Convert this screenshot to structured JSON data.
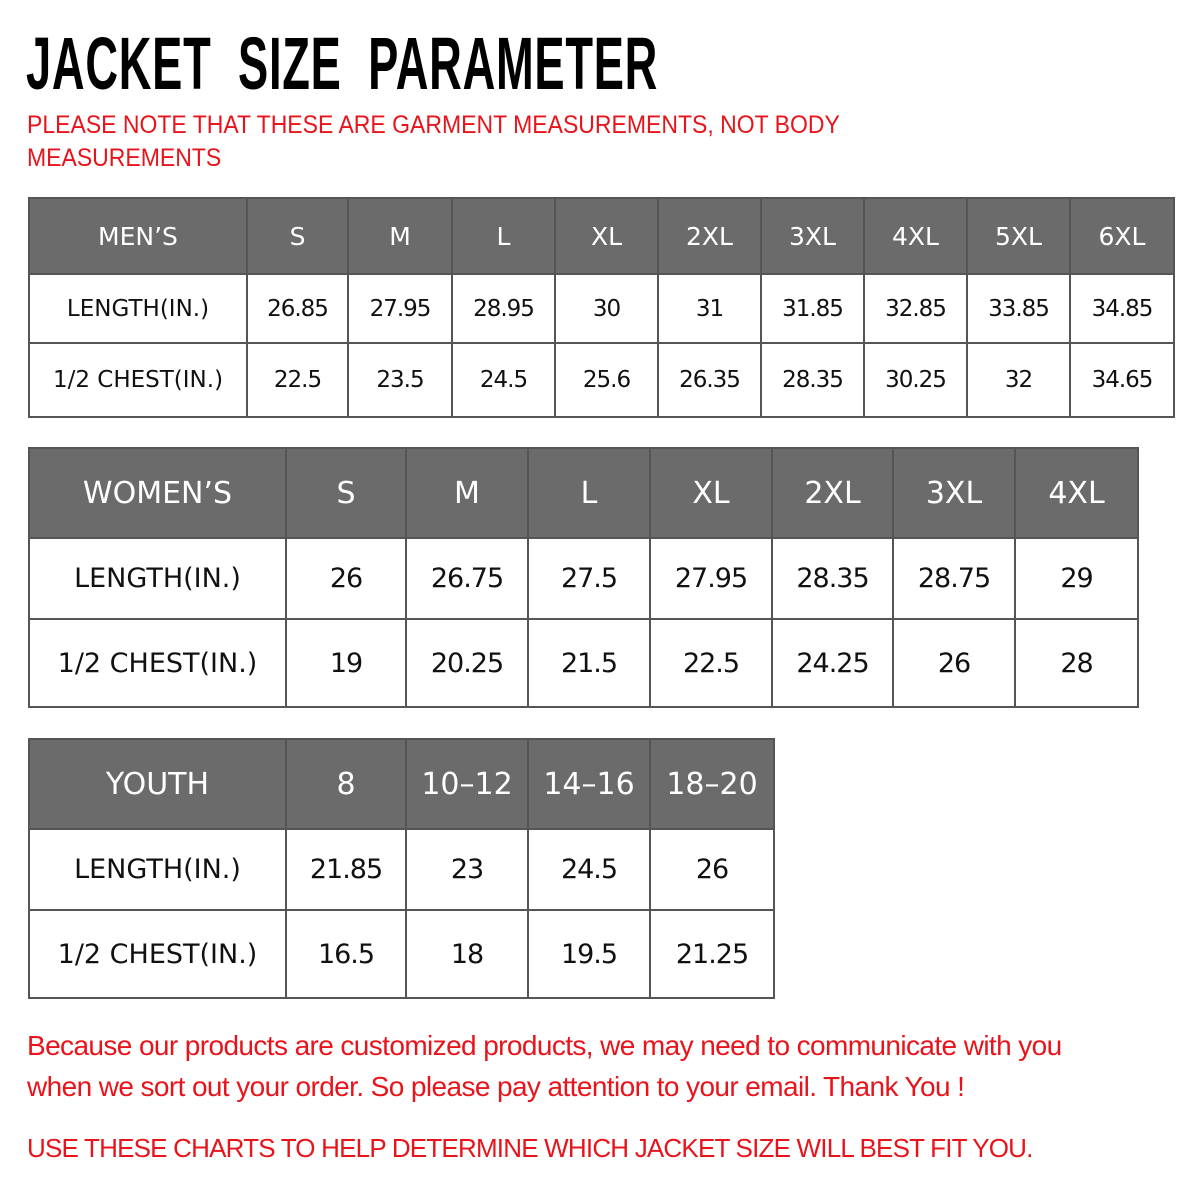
{
  "title": "JACKET  SIZE  PARAMETER",
  "note_line1": "PLEASE NOTE THAT THESE ARE GARMENT MEASUREMENTS, NOT BODY",
  "note_line2": "MEASUREMENTS",
  "colors": {
    "header_bg": "#6b6b6b",
    "accent_red": "#e8141b"
  },
  "tables": {
    "men": {
      "header": [
        "MEN’S",
        "S",
        "M",
        "L",
        "XL",
        "2XL",
        "3XL",
        "4XL",
        "5XL",
        "6XL"
      ],
      "rows": [
        [
          "LENGTH(IN.)",
          "26.85",
          "27.95",
          "28.95",
          "30",
          "31",
          "31.85",
          "32.85",
          "33.85",
          "34.85"
        ],
        [
          "1/2 CHEST(IN.)",
          "22.5",
          "23.5",
          "24.5",
          "25.6",
          "26.35",
          "28.35",
          "30.25",
          "32",
          "34.65"
        ]
      ]
    },
    "women": {
      "header": [
        "WOMEN’S",
        "S",
        "M",
        "L",
        "XL",
        "2XL",
        "3XL",
        "4XL"
      ],
      "rows": [
        [
          "LENGTH(IN.)",
          "26",
          "26.75",
          "27.5",
          "27.95",
          "28.35",
          "28.75",
          "29"
        ],
        [
          "1/2 CHEST(IN.)",
          "19",
          "20.25",
          "21.5",
          "22.5",
          "24.25",
          "26",
          "28"
        ]
      ]
    },
    "youth": {
      "header": [
        "YOUTH",
        "8",
        "10–12",
        "14–16",
        "18–20"
      ],
      "rows": [
        [
          "LENGTH(IN.)",
          "21.85",
          "23",
          "24.5",
          "26"
        ],
        [
          "1/2 CHEST(IN.)",
          "16.5",
          "18",
          "19.5",
          "21.25"
        ]
      ]
    }
  },
  "footer_line1": "Because our products are customized products, we may need to communicate with you",
  "footer_line2": "when we sort out your order. So please pay attention to your email. Thank You !",
  "footer_line3": "USE THESE CHARTS TO HELP DETERMINE WHICH JACKET SIZE WILL BEST FIT YOU."
}
